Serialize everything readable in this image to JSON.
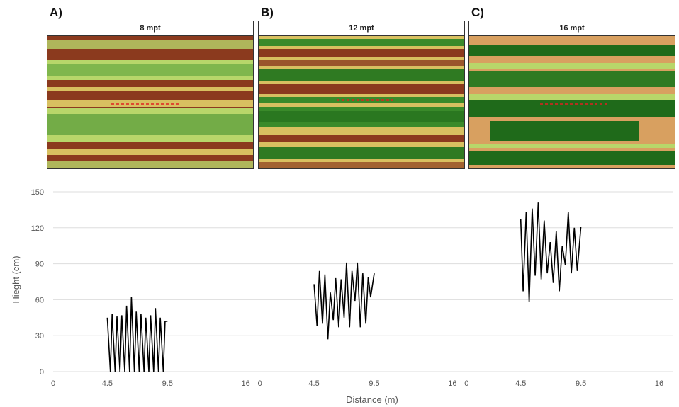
{
  "panels": [
    {
      "letter": "A)",
      "title": "8 mpt"
    },
    {
      "letter": "B)",
      "title": "12 mpt"
    },
    {
      "letter": "C)",
      "title": "16 mpt"
    }
  ],
  "colors": {
    "soil": "#8b3a1e",
    "mid": "#d8c060",
    "light": "#b8d66a",
    "canopy": "#3a8a2a",
    "dark": "#1f6a1a",
    "transect": "#e02020",
    "line": "#000000",
    "grid": "#dddddd"
  },
  "chart_data": {
    "type": "line",
    "xlabel": "Distance (m)",
    "ylabel": "Hieght (cm)",
    "ylim": [
      0,
      150
    ],
    "yticks": [
      0,
      30,
      60,
      90,
      120,
      150
    ],
    "grid": true,
    "panels": [
      {
        "xticks": [
          "0",
          "4.5",
          "9.5",
          "16"
        ],
        "xlim": [
          0,
          16
        ],
        "series": [
          {
            "x": [
              4.5,
              4.75,
              4.9,
              5.15,
              5.3,
              5.55,
              5.7,
              5.95,
              6.1,
              6.35,
              6.5,
              6.75,
              6.9,
              7.15,
              7.3,
              7.55,
              7.7,
              7.95,
              8.1,
              8.35,
              8.5,
              8.75,
              8.9,
              9.15,
              9.3,
              9.5
            ],
            "y": [
              45,
              0,
              48,
              0,
              46,
              0,
              47,
              0,
              55,
              0,
              62,
              0,
              50,
              0,
              48,
              0,
              45,
              0,
              47,
              0,
              53,
              0,
              45,
              0,
              42,
              42
            ]
          }
        ]
      },
      {
        "xticks": [
          "0",
          "4.5",
          "9.5",
          "16"
        ],
        "xlim": [
          0,
          16
        ],
        "series": [
          {
            "x": [
              4.5,
              4.75,
              4.95,
              5.2,
              5.4,
              5.65,
              5.85,
              6.1,
              6.3,
              6.55,
              6.75,
              7.0,
              7.2,
              7.45,
              7.65,
              7.9,
              8.1,
              8.35,
              8.55,
              8.8,
              9.0,
              9.2,
              9.5
            ],
            "y": [
              73,
              38,
              84,
              40,
              81,
              27,
              66,
              43,
              78,
              37,
              77,
              45,
              91,
              37,
              84,
              59,
              91,
              37,
              82,
              40,
              79,
              62,
              82
            ]
          }
        ]
      },
      {
        "xticks": [
          "0",
          "4.5",
          "9.5",
          "16"
        ],
        "xlim": [
          0,
          16
        ],
        "series": [
          {
            "x": [
              4.5,
              4.7,
              4.95,
              5.2,
              5.45,
              5.7,
              5.95,
              6.2,
              6.45,
              6.7,
              6.95,
              7.2,
              7.45,
              7.7,
              7.95,
              8.2,
              8.45,
              8.7,
              8.95,
              9.2,
              9.5
            ],
            "y": [
              127,
              67,
              133,
              58,
              136,
              80,
              141,
              77,
              126,
              82,
              108,
              74,
              117,
              67,
              105,
              89,
              133,
              82,
              120,
              84,
              121
            ]
          }
        ]
      }
    ]
  }
}
